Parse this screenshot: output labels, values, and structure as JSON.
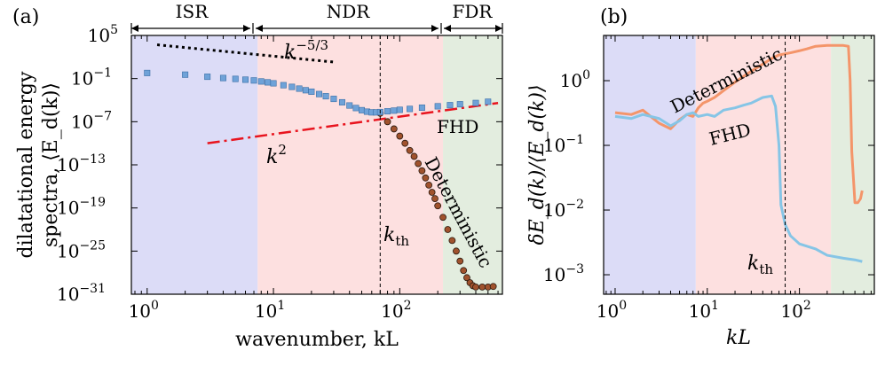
{
  "chart_data": [
    {
      "panel_label": "(a)",
      "type": "scatter",
      "xscale": "log",
      "yscale": "log",
      "xlim": [
        0.75,
        650
      ],
      "ylim": [
        1e-31,
        100000.0
      ],
      "xlabel": "wavenumber, kL",
      "ylabel_line1": "dilatational energy",
      "ylabel_line2": "spectra, ⟨E_d(k)⟩",
      "xticks": [
        {
          "value": 1,
          "base": "10",
          "exp": "0"
        },
        {
          "value": 10,
          "base": "10",
          "exp": "1"
        },
        {
          "value": 100,
          "base": "10",
          "exp": "2"
        }
      ],
      "yticks": [
        {
          "value": 100000.0,
          "base": "10",
          "exp": "5"
        },
        {
          "value": 0.1,
          "base": "10",
          "exp": "−1"
        },
        {
          "value": 1e-07,
          "base": "10",
          "exp": "−7"
        },
        {
          "value": 1e-13,
          "base": "10",
          "exp": "−13"
        },
        {
          "value": 1e-19,
          "base": "10",
          "exp": "−19"
        },
        {
          "value": 1e-25,
          "base": "10",
          "exp": "−25"
        },
        {
          "value": 1e-31,
          "base": "10",
          "exp": "−31"
        }
      ],
      "regions": [
        {
          "name": "ISR",
          "x": [
            0.75,
            7.5
          ],
          "color": "#dcdcf7"
        },
        {
          "name": "NDR",
          "x": [
            7.5,
            220
          ],
          "color": "#fde0e0"
        },
        {
          "name": "FDR",
          "x": [
            220,
            650
          ],
          "color": "#e3eddf"
        }
      ],
      "k_th": 70,
      "series": [
        {
          "name": "FHD",
          "marker": "square",
          "color": "#6fa2d8",
          "points": [
            [
              1,
              0.6
            ],
            [
              2,
              0.35
            ],
            [
              3,
              0.18
            ],
            [
              4,
              0.12
            ],
            [
              5,
              0.09
            ],
            [
              6,
              0.07
            ],
            [
              7,
              0.055
            ],
            [
              8,
              0.04
            ],
            [
              9,
              0.03
            ],
            [
              10,
              0.022
            ],
            [
              12,
              0.012
            ],
            [
              14,
              0.007
            ],
            [
              16,
              0.004
            ],
            [
              18,
              0.0024
            ],
            [
              20,
              0.0015
            ],
            [
              23,
              0.0007
            ],
            [
              26,
              0.00035
            ],
            [
              30,
              0.00015
            ],
            [
              35,
              5e-05
            ],
            [
              40,
              1.8e-05
            ],
            [
              45,
              8e-06
            ],
            [
              50,
              4e-06
            ],
            [
              55,
              2.5e-06
            ],
            [
              60,
              2e-06
            ],
            [
              65,
              2e-06
            ],
            [
              70,
              2.2e-06
            ],
            [
              80,
              2.8e-06
            ],
            [
              90,
              3.5e-06
            ],
            [
              100,
              4.5e-06
            ],
            [
              120,
              6e-06
            ],
            [
              150,
              9e-06
            ],
            [
              200,
              1.4e-05
            ],
            [
              250,
              2e-05
            ],
            [
              300,
              2.7e-05
            ],
            [
              400,
              4e-05
            ],
            [
              500,
              6e-05
            ]
          ]
        },
        {
          "name": "Deterministic",
          "marker": "circle",
          "color": "#a0522d",
          "points": [
            [
              70,
              1.5e-06
            ],
            [
              80,
              1e-07
            ],
            [
              90,
              1e-08
            ],
            [
              100,
              1e-09
            ],
            [
              110,
              1e-10
            ],
            [
              120,
              1e-11
            ],
            [
              130,
              1.5e-12
            ],
            [
              140,
              1.5e-13
            ],
            [
              150,
              1.5e-14
            ],
            [
              160,
              1.5e-15
            ],
            [
              170,
              1.5e-16
            ],
            [
              180,
              1.5e-17
            ],
            [
              190,
              2e-18
            ],
            [
              200,
              2e-19
            ],
            [
              220,
              5e-21
            ],
            [
              240,
              1e-22
            ],
            [
              260,
              3e-24
            ],
            [
              280,
              1e-25
            ],
            [
              300,
              4e-27
            ],
            [
              320,
              2e-28
            ],
            [
              340,
              2e-29
            ],
            [
              360,
              4e-30
            ],
            [
              380,
              1.5e-30
            ],
            [
              400,
              1e-30
            ],
            [
              450,
              1e-30
            ],
            [
              500,
              1e-30
            ],
            [
              550,
              1.2e-30
            ]
          ]
        }
      ],
      "reference_lines": [
        {
          "name": "k^-5/3",
          "style": "dotted",
          "color": "#000000",
          "points": [
            [
              1.2,
              5000
            ],
            [
              30,
              20
            ]
          ]
        },
        {
          "name": "k^2",
          "style": "dashdot",
          "color": "#e8141e",
          "points": [
            [
              3,
              1e-10
            ],
            [
              600,
              4e-05
            ]
          ]
        }
      ],
      "annotations": {
        "fhd": "FHD",
        "deterministic": "Deterministic",
        "k_th_base": "k",
        "k_th_sub": "th",
        "slope53_base": "k",
        "slope53_exp": "−5/3",
        "slope2_base": "k",
        "slope2_exp": "2"
      },
      "region_labels": [
        "ISR",
        "NDR",
        "FDR"
      ]
    },
    {
      "panel_label": "(b)",
      "type": "line",
      "xscale": "log",
      "yscale": "log",
      "xlim": [
        0.75,
        650
      ],
      "ylim": [
        0.0005,
        5
      ],
      "xlabel": "kL",
      "ylabel": "δE_d(k)/⟨E_d(k)⟩",
      "xticks": [
        {
          "value": 1,
          "base": "10",
          "exp": "0"
        },
        {
          "value": 10,
          "base": "10",
          "exp": "1"
        },
        {
          "value": 100,
          "base": "10",
          "exp": "2"
        }
      ],
      "yticks": [
        {
          "value": 1,
          "base": "10",
          "exp": "0"
        },
        {
          "value": 0.1,
          "base": "10",
          "exp": "−1"
        },
        {
          "value": 0.01,
          "base": "10",
          "exp": "−2"
        },
        {
          "value": 0.001,
          "base": "10",
          "exp": "−3"
        }
      ],
      "regions": [
        {
          "name": "ISR",
          "x": [
            0.75,
            7.5
          ],
          "color": "#dcdcf7"
        },
        {
          "name": "NDR",
          "x": [
            7.5,
            220
          ],
          "color": "#fde0e0"
        },
        {
          "name": "FDR",
          "x": [
            220,
            650
          ],
          "color": "#e3eddf"
        }
      ],
      "k_th": 70,
      "series": [
        {
          "name": "Deterministic",
          "color": "#f4956a",
          "points": [
            [
              1,
              0.32
            ],
            [
              1.5,
              0.3
            ],
            [
              2,
              0.35
            ],
            [
              3,
              0.22
            ],
            [
              4,
              0.18
            ],
            [
              5,
              0.25
            ],
            [
              6,
              0.3
            ],
            [
              7,
              0.28
            ],
            [
              8,
              0.38
            ],
            [
              9,
              0.45
            ],
            [
              10,
              0.48
            ],
            [
              12,
              0.55
            ],
            [
              15,
              0.7
            ],
            [
              20,
              0.95
            ],
            [
              30,
              1.4
            ],
            [
              40,
              1.8
            ],
            [
              50,
              2.2
            ],
            [
              60,
              2.5
            ],
            [
              70,
              2.6
            ],
            [
              80,
              2.7
            ],
            [
              100,
              2.9
            ],
            [
              120,
              3.1
            ],
            [
              150,
              3.4
            ],
            [
              200,
              3.5
            ],
            [
              300,
              3.5
            ],
            [
              340,
              3.4
            ],
            [
              355,
              1.0
            ],
            [
              370,
              0.08
            ],
            [
              400,
              0.013
            ],
            [
              430,
              0.013
            ],
            [
              460,
              0.015
            ],
            [
              480,
              0.02
            ]
          ]
        },
        {
          "name": "FHD",
          "color": "#86c5e6",
          "points": [
            [
              1,
              0.28
            ],
            [
              1.5,
              0.26
            ],
            [
              2,
              0.3
            ],
            [
              3,
              0.26
            ],
            [
              4,
              0.2
            ],
            [
              5,
              0.24
            ],
            [
              6,
              0.3
            ],
            [
              7,
              0.32
            ],
            [
              8,
              0.28
            ],
            [
              10,
              0.3
            ],
            [
              12,
              0.28
            ],
            [
              15,
              0.35
            ],
            [
              20,
              0.38
            ],
            [
              25,
              0.42
            ],
            [
              30,
              0.45
            ],
            [
              40,
              0.55
            ],
            [
              50,
              0.58
            ],
            [
              55,
              0.4
            ],
            [
              60,
              0.1
            ],
            [
              63,
              0.012
            ],
            [
              70,
              0.006
            ],
            [
              80,
              0.004
            ],
            [
              100,
              0.003
            ],
            [
              150,
              0.0025
            ],
            [
              200,
              0.002
            ],
            [
              300,
              0.0018
            ],
            [
              400,
              0.0017
            ],
            [
              480,
              0.0016
            ]
          ]
        }
      ],
      "annotations": {
        "fhd": "FHD",
        "deterministic": "Deterministic",
        "k_th_base": "k",
        "k_th_sub": "th"
      }
    }
  ]
}
